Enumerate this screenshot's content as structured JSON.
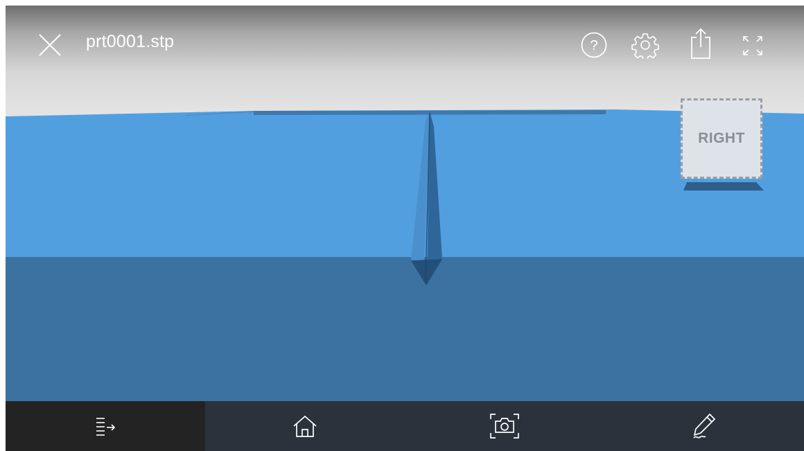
{
  "header": {
    "file_name": "prt0001.stp"
  },
  "toolbar_top": {
    "close_icon": "close-icon",
    "help_icon": "help-icon",
    "settings_icon": "gear-icon",
    "share_icon": "share-icon",
    "fullscreen_icon": "fullscreen-icon"
  },
  "view_cube": {
    "face_label": "RIGHT"
  },
  "toolbar_bottom": {
    "items": [
      {
        "icon": "structure-list-icon",
        "active": true
      },
      {
        "icon": "home-icon",
        "active": false
      },
      {
        "icon": "camera-icon",
        "active": false
      },
      {
        "icon": "pencil-icon",
        "active": false
      }
    ]
  },
  "colors": {
    "model_top_face": "#529fe0",
    "model_front_face": "#3b72a1",
    "toolbar_bg": "#2b323c",
    "toolbar_active_bg": "#232323",
    "icon_color": "#ffffff"
  }
}
